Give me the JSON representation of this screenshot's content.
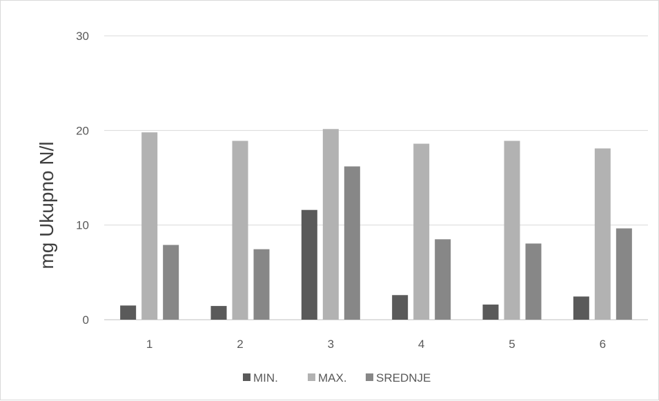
{
  "chart_data": {
    "type": "bar",
    "title": "",
    "xlabel": "",
    "ylabel": "mg Ukupno N/l",
    "ylim": [
      0,
      30
    ],
    "yticks": [
      "0",
      "10",
      "20",
      "30"
    ],
    "grid": true,
    "legend_position": "bottom",
    "categories": [
      "1",
      "2",
      "3",
      "4",
      "5",
      "6"
    ],
    "series": [
      {
        "name": "MIN.",
        "color": "#5a5a5a",
        "values": [
          1.5,
          1.45,
          11.6,
          2.6,
          1.6,
          2.45
        ]
      },
      {
        "name": "MAX.",
        "color": "#b2b2b2",
        "values": [
          19.8,
          18.9,
          20.15,
          18.6,
          18.9,
          18.1
        ]
      },
      {
        "name": "SREDNJE",
        "color": "#878787",
        "values": [
          7.9,
          7.45,
          16.2,
          8.5,
          8.05,
          9.65
        ]
      }
    ]
  }
}
